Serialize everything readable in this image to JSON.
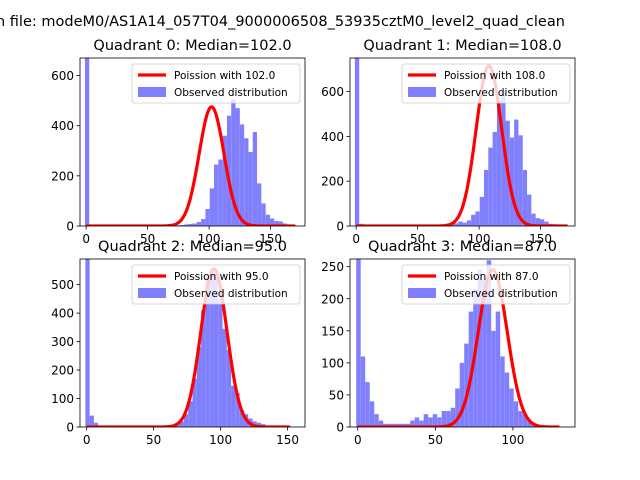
{
  "chart_data": {
    "suptitle": "n file: modeM0/AS1A14_057T04_9000006508_53935cztM0_level2_quad_clean",
    "legend_labels": {
      "poisson_prefix": "Poission with",
      "observed": "Observed distribution"
    },
    "colors": {
      "histogram": "#8080ff",
      "poisson": "#ff0000",
      "legend_edge": "#cccccc"
    },
    "panels": [
      {
        "type": "bar",
        "title": "Quadrant 0: Median=102.0",
        "median": 102.0,
        "poisson_label": "Poission with 102.0",
        "xlim": [
          -5,
          178
        ],
        "ylim": [
          0,
          670
        ],
        "xticks": [
          0,
          50,
          100,
          150
        ],
        "yticks": [
          0,
          200,
          400,
          600
        ],
        "curve_peak": 475,
        "curve_sigma": 10.1,
        "curve_xmax": 170,
        "hist": {
          "start": -1,
          "width": 3.5,
          "counts": [
            670,
            5,
            3,
            2,
            2,
            2,
            2,
            2,
            2,
            2,
            2,
            2,
            2,
            2,
            2,
            2,
            2,
            2,
            2,
            2,
            2,
            2,
            4,
            6,
            8,
            10,
            16,
            28,
            68,
            150,
            245,
            265,
            360,
            440,
            505,
            470,
            405,
            350,
            295,
            375,
            170,
            90,
            45,
            30,
            20,
            18,
            10,
            6,
            4
          ]
        }
      },
      {
        "type": "bar",
        "title": "Quadrant 1: Median=108.0",
        "median": 108.0,
        "poisson_label": "Poission with 108.0",
        "xlim": [
          -5,
          178
        ],
        "ylim": [
          0,
          750
        ],
        "xticks": [
          0,
          50,
          100,
          150
        ],
        "yticks": [
          0,
          200,
          400,
          600
        ],
        "curve_peak": 715,
        "curve_sigma": 10.4,
        "curve_xmax": 172,
        "hist": {
          "start": -1,
          "width": 3.5,
          "counts": [
            750,
            10,
            5,
            3,
            3,
            2,
            2,
            2,
            2,
            2,
            2,
            2,
            2,
            2,
            2,
            2,
            2,
            2,
            2,
            2,
            3,
            5,
            8,
            12,
            20,
            15,
            25,
            50,
            65,
            130,
            250,
            350,
            420,
            560,
            600,
            470,
            395,
            475,
            405,
            250,
            140,
            55,
            35,
            30,
            20,
            10,
            8,
            5,
            3
          ]
        }
      },
      {
        "type": "bar",
        "title": "Quadrant 2: Median=95.0",
        "median": 95.0,
        "poisson_label": "Poission with 95.0",
        "xlim": [
          -5,
          163
        ],
        "ylim": [
          0,
          590
        ],
        "xticks": [
          0,
          50,
          100,
          150
        ],
        "yticks": [
          0,
          100,
          200,
          300,
          400,
          500
        ],
        "curve_peak": 555,
        "curve_sigma": 9.75,
        "curve_xmax": 152,
        "hist": {
          "start": -1,
          "width": 3.2,
          "counts": [
            590,
            40,
            15,
            3,
            2,
            2,
            2,
            2,
            2,
            2,
            2,
            2,
            2,
            2,
            2,
            2,
            2,
            2,
            2,
            2,
            5,
            10,
            20,
            45,
            90,
            170,
            280,
            410,
            525,
            545,
            540,
            450,
            345,
            270,
            145,
            120,
            60,
            45,
            30,
            20,
            15,
            10,
            5,
            3
          ]
        }
      },
      {
        "type": "bar",
        "title": "Quadrant 3: Median=87.0",
        "median": 87.0,
        "poisson_label": "Poission with 87.0",
        "xlim": [
          -5,
          140
        ],
        "ylim": [
          0,
          262
        ],
        "xticks": [
          0,
          50,
          100
        ],
        "yticks": [
          0,
          50,
          100,
          150,
          200,
          250
        ],
        "curve_peak": 245,
        "curve_sigma": 9.33,
        "curve_xmax": 130,
        "hist": {
          "start": -1,
          "width": 2.9,
          "counts": [
            262,
            110,
            70,
            40,
            20,
            10,
            5,
            5,
            5,
            5,
            5,
            5,
            10,
            15,
            10,
            20,
            15,
            20,
            15,
            25,
            25,
            30,
            60,
            100,
            130,
            180,
            215,
            245,
            230,
            260,
            150,
            180,
            110,
            85,
            60,
            40,
            25,
            20,
            10,
            5,
            3
          ]
        }
      }
    ]
  }
}
